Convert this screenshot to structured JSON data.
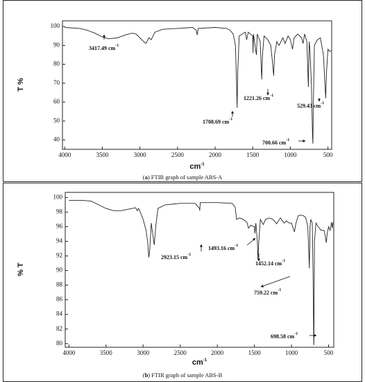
{
  "chart_data": [
    {
      "type": "line",
      "caption_label": "a",
      "caption": "FTIR graph of sample ABS-A",
      "ylabel": "T %",
      "xlabel": {
        "text": "cm",
        "sup": "-1"
      },
      "color": "#222",
      "xlim": [
        4030,
        450
      ],
      "xticks": [
        4000,
        3500,
        3000,
        2500,
        2000,
        1500,
        1000,
        500
      ],
      "ylim": [
        35,
        103
      ],
      "yticks": [
        40,
        50,
        60,
        70,
        80,
        90,
        100
      ],
      "x": [
        4000,
        3800,
        3700,
        3600,
        3500,
        3417,
        3300,
        3200,
        3100,
        3050,
        3000,
        2950,
        2920,
        2880,
        2850,
        2800,
        2700,
        2500,
        2300,
        2250,
        2237,
        2225,
        2000,
        1850,
        1800,
        1760,
        1730,
        1715,
        1708,
        1700,
        1680,
        1600,
        1580,
        1560,
        1500,
        1495,
        1490,
        1455,
        1450,
        1440,
        1400,
        1380,
        1370,
        1350,
        1300,
        1260,
        1240,
        1221,
        1210,
        1180,
        1150,
        1100,
        1070,
        1030,
        1000,
        970,
        950,
        900,
        850,
        830,
        810,
        780,
        760,
        750,
        740,
        720,
        705,
        700,
        695,
        680,
        640,
        600,
        560,
        540,
        529,
        520,
        500,
        480,
        460
      ],
      "values": [
        99.5,
        99,
        98,
        96.5,
        94.5,
        93.5,
        94,
        95.5,
        96.5,
        96,
        94,
        92,
        91,
        94,
        93,
        97,
        98.5,
        99,
        99.5,
        98,
        95.5,
        99,
        99.5,
        99,
        98,
        96,
        90,
        70,
        57,
        75,
        95,
        97,
        93,
        97,
        95,
        86,
        96,
        86,
        85,
        96,
        92,
        72,
        85,
        95,
        93,
        90,
        82,
        74,
        85,
        92,
        90,
        94,
        91,
        95,
        93,
        88,
        94,
        96,
        94,
        91,
        96,
        92,
        68,
        92,
        88,
        70,
        42,
        38,
        55,
        90,
        93,
        94,
        85,
        70,
        62,
        75,
        88,
        87,
        87
      ],
      "annotations": [
        {
          "text": "3417.49 cm",
          "sup": "-1"
        },
        {
          "text": "1708.69 cm",
          "sup": "-1"
        },
        {
          "text": "1221.26 cm",
          "sup": "-1"
        },
        {
          "text": "529.43 cm",
          "sup": "-1"
        },
        {
          "text": "700.66 cm",
          "sup": "-1"
        }
      ]
    },
    {
      "type": "line",
      "caption_label": "b",
      "caption": "FTIR graph of sample ABS-B",
      "ylabel": "% T",
      "xlabel": {
        "text": "cm",
        "sup": "-1"
      },
      "color": "#222",
      "xlim": [
        4050,
        430
      ],
      "xticks": [
        4000,
        3500,
        3000,
        2500,
        2000,
        1500,
        1000,
        500
      ],
      "ylim": [
        79.5,
        100.7
      ],
      "yticks": [
        80,
        82,
        84,
        86,
        88,
        90,
        92,
        94,
        96,
        98,
        100
      ],
      "x": [
        4000,
        3800,
        3700,
        3600,
        3500,
        3400,
        3300,
        3200,
        3100,
        3080,
        3060,
        3030,
        3000,
        2960,
        2940,
        2923,
        2910,
        2890,
        2870,
        2850,
        2830,
        2800,
        2700,
        2500,
        2300,
        2240,
        2237,
        2230,
        2000,
        1800,
        1760,
        1740,
        1700,
        1650,
        1600,
        1580,
        1550,
        1500,
        1493,
        1480,
        1460,
        1452,
        1440,
        1420,
        1380,
        1350,
        1300,
        1250,
        1200,
        1150,
        1100,
        1070,
        1030,
        1000,
        960,
        940,
        910,
        880,
        840,
        810,
        780,
        765,
        759,
        750,
        740,
        720,
        710,
        700,
        698,
        695,
        690,
        670,
        640,
        600,
        560,
        540,
        530,
        520,
        500,
        480,
        460,
        450,
        440
      ],
      "values": [
        99.6,
        99.6,
        99.5,
        99,
        98.5,
        98.2,
        98.2,
        98.4,
        98.6,
        98.2,
        98.5,
        97.8,
        97,
        95.5,
        94,
        91.8,
        93,
        96.5,
        95,
        93.5,
        96,
        98.5,
        99,
        99.2,
        99.2,
        98.5,
        98.2,
        99.3,
        99.3,
        99.2,
        98.7,
        97,
        97.2,
        97,
        96.6,
        95.8,
        96.2,
        96,
        95.1,
        96.5,
        94,
        91.5,
        94,
        97,
        96.3,
        97,
        97.2,
        97,
        96.4,
        97.2,
        96.5,
        96.8,
        96.5,
        96.5,
        95.3,
        96.5,
        97.5,
        97.6,
        97.5,
        97.3,
        96,
        92,
        90.3,
        96,
        97,
        96.5,
        90,
        80,
        79.8,
        86,
        94,
        96.5,
        96,
        95.5,
        95.5,
        94.5,
        93.8,
        95,
        96,
        95.5,
        96.6,
        95.8,
        96.6
      ],
      "annotations": [
        {
          "text": "2923.15 cm",
          "sup": "-1"
        },
        {
          "text": "1493.16 cm",
          "sup": "-1"
        },
        {
          "text": "1452.14 cm",
          "sup": "-1"
        },
        {
          "text": "759.22 cm",
          "sup": "-1"
        },
        {
          "text": "698.58 cm",
          "sup": "-1"
        }
      ]
    }
  ]
}
